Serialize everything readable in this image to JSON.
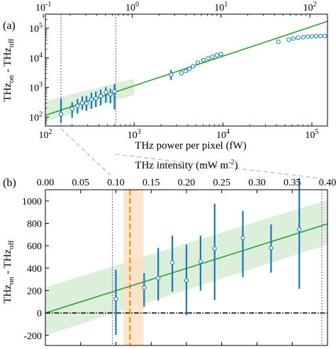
{
  "chart_data": [
    {
      "panel_label": "(a)",
      "type": "scatter",
      "xlabel": "THz power per pixel (fW)",
      "ylabel_main": "THz",
      "ylabel_sub_on": "on",
      "ylabel_sub_off": "off",
      "ylabel_sep": " - ",
      "x_scale": "log",
      "y_scale": "log",
      "xlim": [
        100,
        150000
      ],
      "ylim": [
        50,
        300000
      ],
      "x_ticks": [
        {
          "value": 100,
          "base": "10",
          "exp": "2"
        },
        {
          "value": 1000,
          "base": "10",
          "exp": "3"
        },
        {
          "value": 10000,
          "base": "10",
          "exp": "4"
        },
        {
          "value": 100000,
          "base": "10",
          "exp": "5"
        }
      ],
      "y_ticks": [
        {
          "value": 100,
          "base": "10",
          "exp": "2"
        },
        {
          "value": 1000,
          "base": "10",
          "exp": "3"
        },
        {
          "value": 10000,
          "base": "10",
          "exp": "4"
        },
        {
          "value": 100000,
          "base": "10",
          "exp": "5"
        }
      ],
      "top_axis": {
        "scale": "log",
        "ticks": [
          {
            "value": 0.1,
            "base": "10",
            "exp": "-1"
          },
          {
            "value": 1,
            "base": "10",
            "exp": "0"
          },
          {
            "value": 10,
            "base": "10",
            "exp": "1"
          },
          {
            "value": 100,
            "base": "10",
            "exp": "2"
          }
        ]
      },
      "grid": false,
      "colors": {
        "data": "#1f77b4",
        "fit": "#2ca02c",
        "band": "#d5ecd5",
        "vlines": "#9467bd"
      },
      "fit_line": {
        "x": [
          100,
          150000
        ],
        "y": [
          115,
          172000
        ]
      },
      "confidence_band": {
        "x": [
          100,
          1000
        ],
        "y_low": [
          70,
          560
        ],
        "y_high": [
          360,
          1960
        ]
      },
      "vertical_lines_x": [
        150,
        620
      ],
      "data": [
        {
          "x": 150,
          "y": 125,
          "err_low": 60,
          "err_high": 300
        },
        {
          "x": 200,
          "y": 190,
          "err_low": 95,
          "err_high": 130
        },
        {
          "x": 230,
          "y": 240,
          "err_low": 110,
          "err_high": 170
        },
        {
          "x": 260,
          "y": 300,
          "err_low": 120,
          "err_high": 200
        },
        {
          "x": 290,
          "y": 290,
          "err_low": 130,
          "err_high": 230
        },
        {
          "x": 330,
          "y": 390,
          "err_low": 200,
          "err_high": 280
        },
        {
          "x": 370,
          "y": 430,
          "err_low": 210,
          "err_high": 300
        },
        {
          "x": 420,
          "y": 510,
          "err_low": 260,
          "err_high": 330
        },
        {
          "x": 480,
          "y": 690,
          "err_low": 380,
          "err_high": 330
        },
        {
          "x": 540,
          "y": 590,
          "err_low": 300,
          "err_high": 320
        },
        {
          "x": 600,
          "y": 740,
          "err_low": 560,
          "err_high": 560
        },
        {
          "x": 2600,
          "y": 2700,
          "err_low": 900,
          "err_high": 1200
        },
        {
          "x": 3400,
          "y": 3000
        },
        {
          "x": 3800,
          "y": 3600
        },
        {
          "x": 4200,
          "y": 4200
        },
        {
          "x": 4600,
          "y": 5200
        },
        {
          "x": 5200,
          "y": 7000
        },
        {
          "x": 6000,
          "y": 8400
        },
        {
          "x": 6800,
          "y": 9800
        },
        {
          "x": 7600,
          "y": 11000
        },
        {
          "x": 8500,
          "y": 12500
        },
        {
          "x": 9500,
          "y": 13500
        },
        {
          "x": 42000,
          "y": 35000
        },
        {
          "x": 55000,
          "y": 41000
        },
        {
          "x": 62000,
          "y": 45000
        },
        {
          "x": 70000,
          "y": 48000
        },
        {
          "x": 80000,
          "y": 50000
        },
        {
          "x": 90000,
          "y": 52000
        },
        {
          "x": 100000,
          "y": 53000
        },
        {
          "x": 112000,
          "y": 54000
        },
        {
          "x": 125000,
          "y": 55000
        },
        {
          "x": 140000,
          "y": 55000
        }
      ]
    },
    {
      "panel_label": "(b)",
      "type": "scatter",
      "xlabel": "THz intensity (mW m",
      "xlabel_exp": "-2",
      "xlabel_close": ")",
      "ylabel_main": "THz",
      "ylabel_sub_on": "on",
      "ylabel_sub_off": "off",
      "ylabel_sep": " - ",
      "x_scale": "linear",
      "y_scale": "linear",
      "xlim": [
        0.0,
        0.4
      ],
      "ylim": [
        -290,
        1100
      ],
      "x_ticks": [
        "0.00",
        "0.05",
        "0.10",
        "0.15",
        "0.20",
        "0.25",
        "0.30",
        "0.35",
        "0.40"
      ],
      "y_ticks": [
        "1000",
        "800",
        "600",
        "400",
        "200",
        "0",
        "-200"
      ],
      "grid": false,
      "colors": {
        "data": "#1f77b4",
        "fit": "#2ca02c",
        "band": "#d5ecd5",
        "vlines": "#9467bd",
        "threshold": "#ff7f0e",
        "threshold_band": "#fde0c5",
        "zero_line": "#000000"
      },
      "fit_line": {
        "x": [
          0.0,
          0.4
        ],
        "y": [
          0,
          795
        ]
      },
      "confidence_band": {
        "x": [
          0.0,
          0.4
        ],
        "y_low": [
          -200,
          610
        ],
        "y_high": [
          230,
          1010
        ]
      },
      "threshold": {
        "x": 0.12,
        "band": [
          0.111,
          0.139
        ]
      },
      "vertical_lines_x": [
        0.095,
        0.392
      ],
      "zero_line_y": 0,
      "data": [
        {
          "x": 0.1,
          "y": 125,
          "err_low": 320,
          "err_high": 260
        },
        {
          "x": 0.14,
          "y": 225,
          "err_low": 170,
          "err_high": 130
        },
        {
          "x": 0.16,
          "y": 310,
          "err_low": 200,
          "err_high": 270
        },
        {
          "x": 0.18,
          "y": 450,
          "err_low": 260,
          "err_high": 240
        },
        {
          "x": 0.2,
          "y": 290,
          "err_low": 310,
          "err_high": 320
        },
        {
          "x": 0.22,
          "y": 460,
          "err_low": 260,
          "err_high": 230
        },
        {
          "x": 0.24,
          "y": 575,
          "err_low": 460,
          "err_high": 400
        },
        {
          "x": 0.28,
          "y": 670,
          "err_low": 350,
          "err_high": 240
        },
        {
          "x": 0.32,
          "y": 580,
          "err_low": 220,
          "err_high": 210
        },
        {
          "x": 0.36,
          "y": 745,
          "err_low": 530,
          "err_high": 460
        }
      ]
    }
  ]
}
